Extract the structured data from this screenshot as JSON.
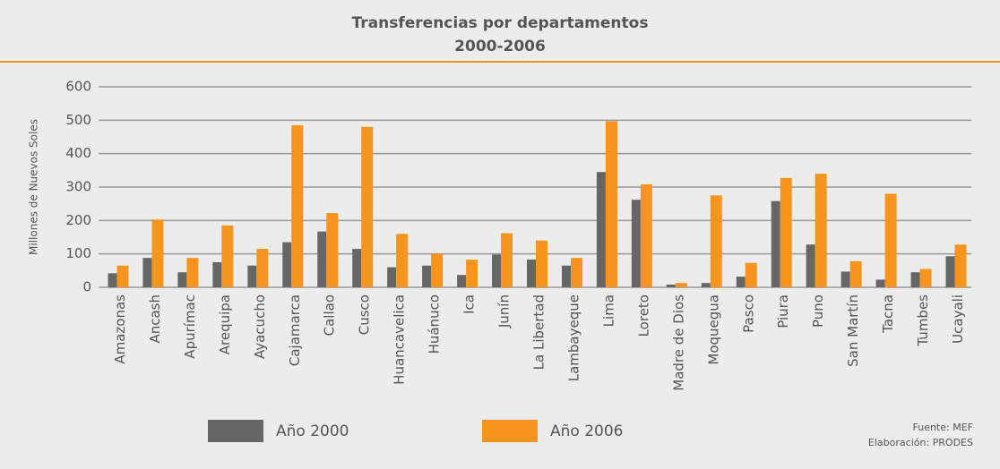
{
  "chart_data": {
    "type": "bar",
    "title": "Transferencias por departamentos",
    "subtitle": "2000-2006",
    "y_label": "Millones de Nuevos Soles",
    "categories": [
      "Amazonas",
      "Ancash",
      "Apurímac",
      "Arequipa",
      "Ayacucho",
      "Cajamarca",
      "Callao",
      "Cusco",
      "Huancavelica",
      "Huánuco",
      "Ica",
      "Junín",
      "La Libertad",
      "Lambayeque",
      "Lima",
      "Loreto",
      "Madre  de Dios",
      "Moquegua",
      "Pasco",
      "Piura",
      "Puno",
      "San Martín",
      "Tacna",
      "Tumbes",
      "Ucayali"
    ],
    "series": [
      {
        "name": "Año 2000",
        "color": "#666666",
        "values": [
          42,
          88,
          45,
          75,
          65,
          135,
          167,
          115,
          60,
          65,
          37,
          98,
          83,
          65,
          345,
          262,
          8,
          13,
          32,
          258,
          128,
          47,
          23,
          45,
          93
        ]
      },
      {
        "name": "Año 2006",
        "color": "#f7941d",
        "values": [
          65,
          203,
          88,
          185,
          115,
          485,
          222,
          480,
          160,
          100,
          83,
          162,
          140,
          88,
          497,
          308,
          13,
          275,
          73,
          327,
          340,
          78,
          280,
          55,
          128
        ]
      }
    ],
    "ylim": [
      0,
      600
    ],
    "yticks": [
      0,
      100,
      200,
      300,
      400,
      500,
      600
    ],
    "grid": true,
    "legend": "bottom",
    "notes": [
      "Fuente: MEF",
      "Elaboración: PRODES"
    ]
  }
}
